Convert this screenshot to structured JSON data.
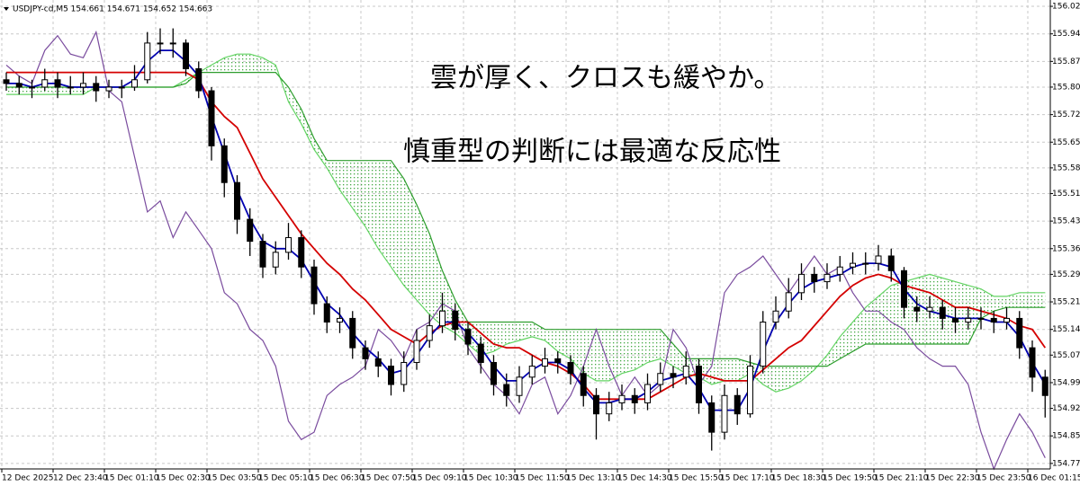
{
  "chart_data": {
    "type": "candlestick",
    "title": "USDJPY-cd,M5  154.661 154.671 154.652 154.663",
    "annotations": [
      "雲が厚く、クロスも緩やか。",
      "慎重型の判断には最適な反応性"
    ],
    "categories": [
      "12 Dec 2025",
      null,
      null,
      null,
      "12 Dec 23:40",
      null,
      null,
      null,
      "15 Dec 01:10",
      null,
      null,
      null,
      "15 Dec 02:30",
      null,
      null,
      null,
      "15 Dec 03:50",
      null,
      null,
      null,
      "15 Dec 05:10",
      null,
      null,
      null,
      "15 Dec 06:30",
      null,
      null,
      null,
      "15 Dec 07:50",
      null,
      null,
      null,
      "15 Dec 09:10",
      null,
      null,
      null,
      "15 Dec 10:30",
      null,
      null,
      null,
      "15 Dec 11:50",
      null,
      null,
      null,
      "15 Dec 13:10",
      null,
      null,
      null,
      "15 Dec 14:30",
      null,
      null,
      null,
      "15 Dec 15:50",
      null,
      null,
      null,
      "15 Dec 17:10",
      null,
      null,
      null,
      "15 Dec 18:30",
      null,
      null,
      null,
      "15 Dec 19:50",
      null,
      null,
      null,
      "15 Dec 21:10",
      null,
      null,
      null,
      "15 Dec 22:30",
      null,
      null,
      null,
      "15 Dec 23:50",
      null,
      null,
      null,
      "16 Dec 01:15",
      null
    ],
    "open": [
      155.82,
      155.81,
      155.8,
      155.8,
      155.82,
      155.8,
      155.8,
      155.81,
      155.79,
      155.8,
      155.8,
      155.82,
      155.92,
      155.92,
      155.92,
      155.85,
      155.79,
      155.64,
      155.54,
      155.44,
      155.38,
      155.31,
      155.35,
      155.39,
      155.31,
      155.21,
      155.16,
      155.17,
      155.09,
      155.06,
      155.04,
      154.99,
      155.05,
      155.11,
      155.15,
      155.19,
      155.14,
      155.1,
      155.05,
      154.99,
      154.96,
      155.01,
      155.04,
      155.06,
      155.05,
      155.02,
      154.96,
      154.91,
      154.94,
      154.96,
      154.94,
      154.99,
      155.02,
      155.01,
      155.04,
      154.94,
      154.86,
      154.96,
      154.91,
      155.04,
      155.16,
      155.19,
      155.24,
      155.29,
      155.27,
      155.29,
      155.31,
      155.32,
      155.32,
      155.34,
      155.3,
      155.2,
      155.19,
      155.2,
      155.17,
      155.16,
      155.17,
      155.17,
      155.16,
      155.17,
      155.09,
      155.01
    ],
    "high": [
      155.84,
      155.83,
      155.82,
      155.85,
      155.84,
      155.83,
      155.84,
      155.83,
      155.82,
      155.82,
      155.86,
      155.95,
      155.96,
      155.96,
      155.93,
      155.87,
      155.8,
      155.66,
      155.56,
      155.47,
      155.4,
      155.38,
      155.43,
      155.41,
      155.33,
      155.23,
      155.2,
      155.19,
      155.11,
      155.08,
      155.06,
      155.08,
      155.14,
      155.18,
      155.24,
      155.21,
      155.16,
      155.12,
      155.07,
      155.02,
      155.04,
      155.07,
      155.09,
      155.08,
      155.07,
      155.04,
      154.98,
      154.97,
      154.99,
      154.98,
      155.02,
      155.05,
      155.04,
      155.08,
      155.06,
      154.96,
      154.99,
      154.98,
      155.07,
      155.19,
      155.23,
      155.28,
      155.32,
      155.31,
      155.32,
      155.34,
      155.35,
      155.35,
      155.37,
      155.36,
      155.31,
      155.23,
      155.23,
      155.22,
      155.2,
      155.2,
      155.2,
      155.19,
      155.2,
      155.19,
      155.11,
      155.03
    ],
    "low": [
      155.79,
      155.78,
      155.77,
      155.79,
      155.77,
      155.78,
      155.78,
      155.76,
      155.77,
      155.77,
      155.79,
      155.81,
      155.89,
      155.88,
      155.83,
      155.77,
      155.6,
      155.5,
      155.4,
      155.34,
      155.28,
      155.29,
      155.33,
      155.28,
      155.18,
      155.13,
      155.13,
      155.06,
      155.03,
      155.01,
      154.96,
      154.97,
      155.03,
      155.09,
      155.13,
      155.11,
      155.07,
      155.02,
      154.96,
      154.93,
      154.94,
      154.99,
      155.02,
      155.02,
      154.99,
      154.93,
      154.84,
      154.89,
      154.92,
      154.91,
      154.92,
      154.97,
      154.98,
      154.99,
      154.91,
      154.81,
      154.84,
      154.88,
      154.9,
      155.02,
      155.14,
      155.17,
      155.22,
      155.24,
      155.25,
      155.27,
      155.29,
      155.29,
      155.3,
      155.27,
      155.17,
      155.16,
      155.17,
      155.14,
      155.13,
      155.14,
      155.14,
      155.13,
      155.14,
      155.06,
      154.97,
      154.9
    ],
    "close": [
      155.81,
      155.8,
      155.8,
      155.82,
      155.8,
      155.8,
      155.81,
      155.79,
      155.8,
      155.8,
      155.82,
      155.92,
      155.92,
      155.92,
      155.85,
      155.79,
      155.64,
      155.54,
      155.44,
      155.38,
      155.31,
      155.35,
      155.39,
      155.31,
      155.21,
      155.16,
      155.17,
      155.09,
      155.06,
      155.04,
      154.99,
      155.05,
      155.11,
      155.15,
      155.19,
      155.14,
      155.1,
      155.05,
      154.99,
      154.96,
      155.01,
      155.04,
      155.06,
      155.05,
      155.02,
      154.96,
      154.91,
      154.94,
      154.96,
      154.94,
      154.99,
      155.02,
      155.01,
      155.04,
      154.94,
      154.86,
      154.96,
      154.91,
      155.04,
      155.16,
      155.19,
      155.24,
      155.29,
      155.27,
      155.29,
      155.31,
      155.32,
      155.32,
      155.34,
      155.3,
      155.2,
      155.19,
      155.2,
      155.17,
      155.16,
      155.17,
      155.17,
      155.16,
      155.17,
      155.09,
      155.01,
      154.96
    ],
    "series": [
      {
        "color": "#63d463",
        "values": [
          155.78,
          155.78,
          155.78,
          155.78,
          155.78,
          155.78,
          155.78,
          155.8,
          155.8,
          155.8,
          155.8,
          155.8,
          155.8,
          155.8,
          155.82,
          155.84,
          155.86,
          155.88,
          155.89,
          155.89,
          155.88,
          155.86,
          155.76,
          155.7,
          155.63,
          155.58,
          155.52,
          155.47,
          155.42,
          155.36,
          155.31,
          155.26,
          155.22,
          155.18,
          155.15,
          155.13,
          155.1,
          155.07,
          155.08,
          155.1,
          155.11,
          155.12,
          155.11,
          155.08,
          155.06,
          155.02,
          155.0,
          155.0,
          155.02,
          155.03,
          155.05,
          155.06,
          155.04,
          155.02,
          155.01,
          154.99,
          155.0,
          155.0,
          155.02,
          154.99,
          154.97,
          154.98,
          155.0,
          155.03,
          155.07,
          155.12,
          155.16,
          155.2,
          155.23,
          155.26,
          155.27,
          155.28,
          155.29,
          155.28,
          155.27,
          155.26,
          155.25,
          155.23,
          155.23,
          155.24,
          155.24,
          155.24
        ]
      },
      {
        "color": "#2e9e2e",
        "values": [
          155.8,
          155.8,
          155.8,
          155.8,
          155.8,
          155.8,
          155.8,
          155.8,
          155.8,
          155.8,
          155.8,
          155.8,
          155.8,
          155.8,
          155.81,
          155.84,
          155.84,
          155.84,
          155.84,
          155.84,
          155.84,
          155.84,
          155.8,
          155.74,
          155.66,
          155.6,
          155.6,
          155.6,
          155.6,
          155.6,
          155.6,
          155.55,
          155.48,
          155.4,
          155.3,
          155.22,
          155.16,
          155.16,
          155.16,
          155.16,
          155.16,
          155.16,
          155.14,
          155.14,
          155.14,
          155.14,
          155.14,
          155.14,
          155.14,
          155.14,
          155.14,
          155.14,
          155.1,
          155.06,
          155.06,
          155.06,
          155.06,
          155.06,
          155.05,
          155.04,
          155.04,
          155.04,
          155.04,
          155.04,
          155.04,
          155.06,
          155.08,
          155.1,
          155.1,
          155.1,
          155.1,
          155.1,
          155.1,
          155.1,
          155.1,
          155.1,
          155.17,
          155.19,
          155.2,
          155.2,
          155.2,
          155.2
        ]
      },
      {
        "color": "#7a4c9e",
        "values": [
          155.86,
          155.83,
          155.81,
          155.9,
          155.94,
          155.89,
          155.88,
          155.95,
          155.79,
          155.76,
          155.61,
          155.46,
          155.49,
          155.39,
          155.46,
          155.41,
          155.36,
          155.24,
          155.21,
          155.14,
          155.11,
          155.04,
          154.89,
          154.84,
          154.86,
          154.96,
          154.99,
          155.01,
          155.04,
          155.14,
          155.11,
          155.06,
          155.14,
          155.16,
          155.21,
          155.19,
          155.09,
          155.04,
          154.99,
          154.96,
          154.91,
          154.99,
          155.01,
          154.91,
          154.96,
          155.04,
          155.14,
          155.04,
          154.96,
          155.01,
          154.96,
          154.99,
          155.14,
          155.09,
          154.99,
          155.04,
          155.24,
          155.29,
          155.31,
          155.34,
          155.29,
          155.24,
          155.29,
          155.34,
          155.29,
          155.31,
          155.24,
          155.19,
          155.19,
          155.16,
          155.14,
          155.09,
          155.06,
          155.04,
          155.04,
          154.99,
          154.86,
          154.76,
          154.84,
          154.91,
          154.86,
          154.79
        ]
      },
      {
        "color": "#d40000",
        "values": [
          155.84,
          155.84,
          155.84,
          155.84,
          155.84,
          155.84,
          155.84,
          155.84,
          155.84,
          155.84,
          155.84,
          155.84,
          155.84,
          155.84,
          155.84,
          155.82,
          155.76,
          155.72,
          155.69,
          155.62,
          155.55,
          155.5,
          155.45,
          155.4,
          155.36,
          155.32,
          155.29,
          155.25,
          155.22,
          155.18,
          155.14,
          155.12,
          155.1,
          155.13,
          155.15,
          155.16,
          155.16,
          155.13,
          155.1,
          155.09,
          155.09,
          155.07,
          155.05,
          155.04,
          155.02,
          154.99,
          154.95,
          154.95,
          154.95,
          154.95,
          154.95,
          154.97,
          154.99,
          155.01,
          155.02,
          155.01,
          155.0,
          155.0,
          155.0,
          155.03,
          155.06,
          155.09,
          155.11,
          155.15,
          155.19,
          155.23,
          155.26,
          155.28,
          155.29,
          155.28,
          155.26,
          155.25,
          155.24,
          155.22,
          155.2,
          155.2,
          155.19,
          155.18,
          155.17,
          155.15,
          155.14,
          155.09
        ]
      },
      {
        "color": "#0000b0",
        "values": [
          155.81,
          155.81,
          155.8,
          155.81,
          155.81,
          155.8,
          155.8,
          155.8,
          155.8,
          155.8,
          155.82,
          155.87,
          155.9,
          155.9,
          155.87,
          155.83,
          155.72,
          155.62,
          155.52,
          155.44,
          155.38,
          155.36,
          155.36,
          155.33,
          155.27,
          155.21,
          155.18,
          155.13,
          155.09,
          155.06,
          155.02,
          155.03,
          155.07,
          155.12,
          155.16,
          155.16,
          155.13,
          155.09,
          155.04,
          155.0,
          155.0,
          155.03,
          155.05,
          155.05,
          155.03,
          154.98,
          154.94,
          154.94,
          154.95,
          154.95,
          154.97,
          155.0,
          155.01,
          155.02,
          154.98,
          154.92,
          154.92,
          154.92,
          154.98,
          155.08,
          155.16,
          155.21,
          155.25,
          155.27,
          155.28,
          155.29,
          155.31,
          155.32,
          155.32,
          155.31,
          155.25,
          155.21,
          155.19,
          155.18,
          155.17,
          155.17,
          155.17,
          155.16,
          155.16,
          155.12,
          155.05,
          154.99
        ]
      }
    ],
    "ylim": [
      154.76,
      156.025
    ],
    "yticks": [
      {
        "value": 156.02,
        "label": "156.020"
      },
      155.945,
      {
        "value": 155.87,
        "label": "155.870"
      },
      {
        "value": 155.8,
        "label": "155.800"
      },
      155.725,
      {
        "value": 155.65,
        "label": "155.650"
      },
      {
        "value": 155.58,
        "label": "155.580"
      },
      {
        "value": 155.51,
        "label": "155.510"
      },
      155.435,
      {
        "value": 155.36,
        "label": "155.360"
      },
      {
        "value": 155.29,
        "label": "155.290"
      },
      155.215,
      {
        "value": 155.14,
        "label": "155.140"
      },
      {
        "value": 155.07,
        "label": "155.070"
      },
      154.995,
      154.925,
      {
        "value": 154.85,
        "label": "154.850"
      },
      154.775
    ],
    "grid": true
  }
}
